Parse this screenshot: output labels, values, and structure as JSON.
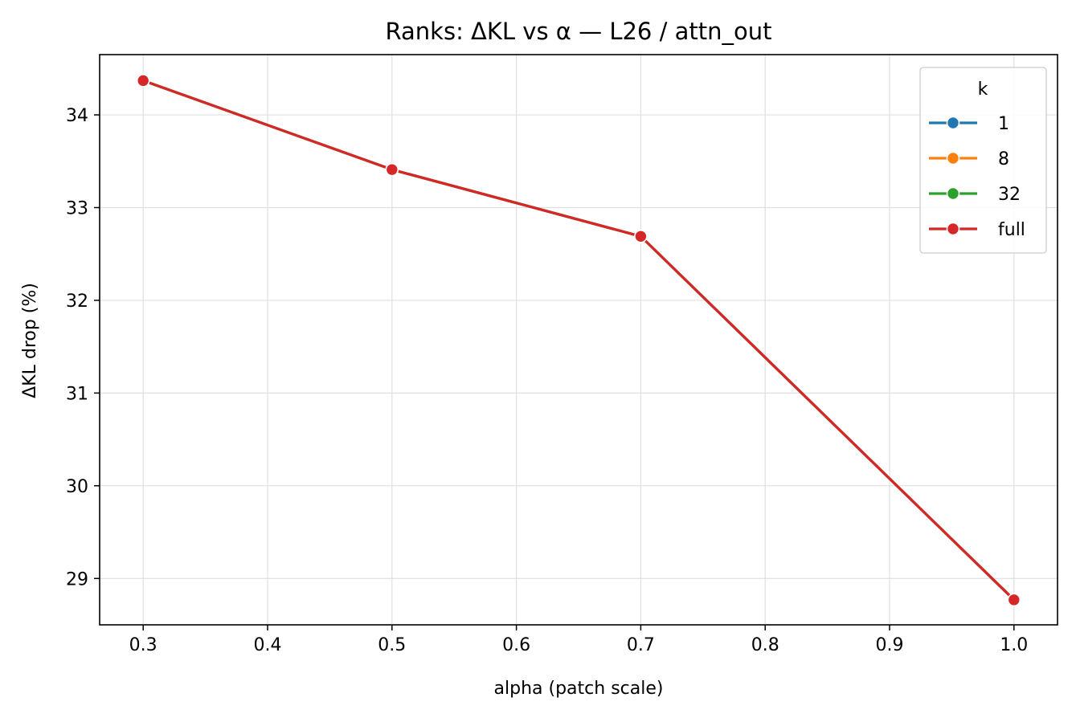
{
  "chart_data": {
    "type": "line",
    "title": "Ranks: ΔKL vs α — L26 / attn_out",
    "xlabel": "alpha (patch scale)",
    "ylabel": "ΔKL drop (%)",
    "xlim": [
      0.265,
      1.035
    ],
    "ylim": [
      28.5,
      34.65
    ],
    "xticks": [
      0.3,
      0.4,
      0.5,
      0.6,
      0.7,
      0.8,
      0.9,
      1.0
    ],
    "xtick_labels": [
      "0.3",
      "0.4",
      "0.5",
      "0.6",
      "0.7",
      "0.8",
      "0.9",
      "1.0"
    ],
    "yticks": [
      29,
      30,
      31,
      32,
      33,
      34
    ],
    "ytick_labels": [
      "29",
      "30",
      "31",
      "32",
      "33",
      "34"
    ],
    "grid": true,
    "legend": {
      "title": "k",
      "placement": "top-right"
    },
    "x": [
      0.3,
      0.5,
      0.7,
      1.0
    ],
    "series": [
      {
        "name": "1",
        "color": "#1f77b4",
        "values": [
          34.37,
          33.41,
          32.69,
          28.77
        ]
      },
      {
        "name": "8",
        "color": "#ff7f0e",
        "values": [
          34.37,
          33.41,
          32.69,
          28.77
        ]
      },
      {
        "name": "32",
        "color": "#2ca02c",
        "values": [
          34.37,
          33.41,
          32.69,
          28.77
        ]
      },
      {
        "name": "full",
        "color": "#d62728",
        "values": [
          34.37,
          33.41,
          32.69,
          28.77
        ]
      }
    ]
  }
}
